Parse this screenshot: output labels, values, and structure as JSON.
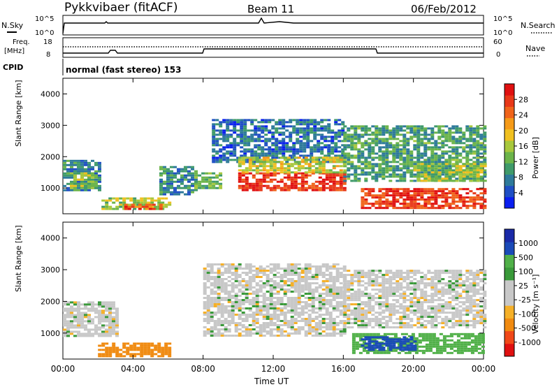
{
  "header": {
    "title": "Pykkvibaer (fitACF)",
    "beam": "Beam 11",
    "date": "06/Feb/2012"
  },
  "panels": {
    "nsky_label": "N.Sky",
    "nsky_ticks": [
      "10^5",
      "10^0"
    ],
    "nsearch_label": "N.Search",
    "nsearch_ticks": [
      "10^5",
      "10^0"
    ],
    "freq_label": "Freq.",
    "freq_unit": "[MHz]",
    "freq_ticks": [
      "18",
      "8"
    ],
    "nave_label": "Nave",
    "nave_ticks": [
      "60",
      "0"
    ],
    "cpid_label": "CPID",
    "cpid_text": "normal (fast stereo) 153"
  },
  "colors": {
    "power_scale": [
      "#0a1ef0",
      "#1f4fc4",
      "#2e7a9a",
      "#3f9a6a",
      "#6cb44a",
      "#a8c83c",
      "#f0c020",
      "#f59a18",
      "#f0641a",
      "#e83818",
      "#e01010"
    ],
    "velocity_scale": [
      "#e01010",
      "#f04818",
      "#f08a10",
      "#f5b028",
      "#c8c8c8",
      "#c8c8c8",
      "#3a9a3a",
      "#50b048",
      "#1a4ab8",
      "#1a2aa8"
    ]
  },
  "chart_data": [
    {
      "type": "heatmap",
      "title": "Power",
      "xlabel": "Time UT",
      "ylabel": "Slant Range [km]",
      "x_ticks": [
        "00:00",
        "04:00",
        "08:00",
        "12:00",
        "16:00",
        "20:00",
        "00:00"
      ],
      "xlim_hours": [
        0,
        24
      ],
      "y_ticks": [
        "1000",
        "2000",
        "3000",
        "4000"
      ],
      "ylim": [
        180,
        4500
      ],
      "colorbar_label": "Power [dB]",
      "colorbar_ticks": [
        "4",
        "8",
        "12",
        "16",
        "20",
        "24",
        "28"
      ],
      "colorbar_range": [
        0,
        30
      ],
      "regions": [
        {
          "t0": 0.0,
          "t1": 2.0,
          "r0": 900,
          "r1": 1900,
          "value": 8
        },
        {
          "t0": 0.4,
          "t1": 1.8,
          "r0": 1000,
          "r1": 1500,
          "value": 14
        },
        {
          "t0": 2.2,
          "t1": 6.0,
          "r0": 300,
          "r1": 700,
          "value": 14
        },
        {
          "t0": 3.5,
          "t1": 5.5,
          "r0": 350,
          "r1": 500,
          "value": 24
        },
        {
          "t0": 5.5,
          "t1": 7.5,
          "r0": 800,
          "r1": 1700,
          "value": 8
        },
        {
          "t0": 7.5,
          "t1": 9.0,
          "r0": 1000,
          "r1": 1500,
          "value": 12
        },
        {
          "t0": 8.5,
          "t1": 16.0,
          "r0": 1800,
          "r1": 3200,
          "value": 6
        },
        {
          "t0": 10.0,
          "t1": 16.0,
          "r0": 900,
          "r1": 1500,
          "value": 26
        },
        {
          "t0": 10.0,
          "t1": 16.0,
          "r0": 1500,
          "r1": 2000,
          "value": 16
        },
        {
          "t0": 16.0,
          "t1": 24.0,
          "r0": 1200,
          "r1": 3000,
          "value": 10
        },
        {
          "t0": 17.0,
          "t1": 24.0,
          "r0": 350,
          "r1": 1000,
          "value": 26
        },
        {
          "t0": 20.0,
          "t1": 24.0,
          "r0": 1200,
          "r1": 1800,
          "value": 14
        }
      ]
    },
    {
      "type": "heatmap",
      "title": "Velocity",
      "xlabel": "Time UT",
      "ylabel": "Slant Range [km]",
      "x_ticks": [
        "00:00",
        "04:00",
        "08:00",
        "12:00",
        "16:00",
        "20:00",
        "00:00"
      ],
      "xlim_hours": [
        0,
        24
      ],
      "y_ticks": [
        "1000",
        "2000",
        "3000",
        "4000"
      ],
      "ylim": [
        180,
        4500
      ],
      "colorbar_label": "Velocity [m s⁻¹]",
      "colorbar_ticks": [
        "1000",
        "500",
        "100",
        "25",
        "-25",
        "-100",
        "-500",
        "-1000"
      ],
      "regions": [
        {
          "t0": 0.0,
          "t1": 3.0,
          "r0": 900,
          "r1": 2000,
          "value": 0
        },
        {
          "t0": 2.0,
          "t1": 6.0,
          "r0": 300,
          "r1": 700,
          "value": -300
        },
        {
          "t0": 8.0,
          "t1": 16.0,
          "r0": 900,
          "r1": 3200,
          "value": 0
        },
        {
          "t0": 16.0,
          "t1": 24.0,
          "r0": 1200,
          "r1": 3000,
          "value": 0
        },
        {
          "t0": 16.5,
          "t1": 24.0,
          "r0": 350,
          "r1": 1000,
          "value": 300
        },
        {
          "t0": 17.0,
          "t1": 20.0,
          "r0": 500,
          "r1": 900,
          "value": 800
        }
      ]
    }
  ]
}
